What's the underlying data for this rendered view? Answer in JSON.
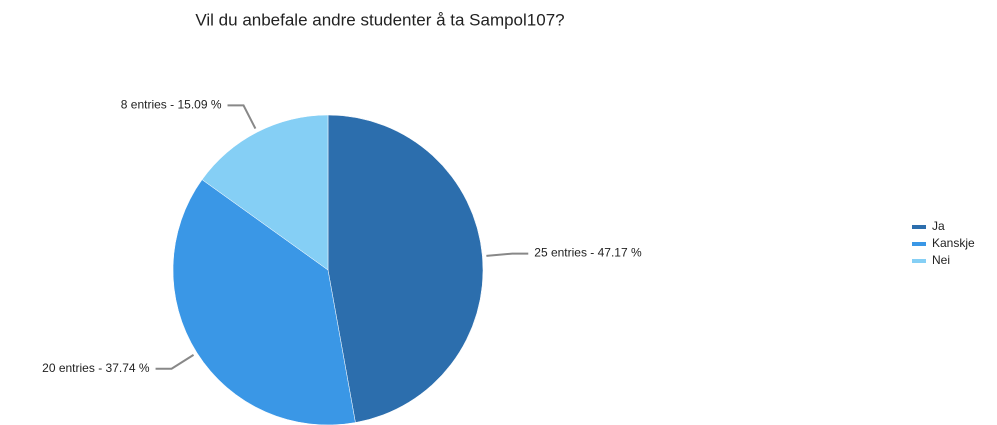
{
  "chart_data": {
    "type": "pie",
    "title": "Vil du anbefale andre studenter å ta Sampol107?",
    "categories": [
      "Ja",
      "Kanskje",
      "Nei"
    ],
    "values": [
      25,
      20,
      8
    ],
    "value_labels": [
      "25 entries - 47.17 %",
      "20 entries - 37.74 %",
      "8 entries - 15.09 %"
    ],
    "colors": [
      "#2c6ead",
      "#3a97e6",
      "#85cff5"
    ],
    "legend": "right"
  }
}
